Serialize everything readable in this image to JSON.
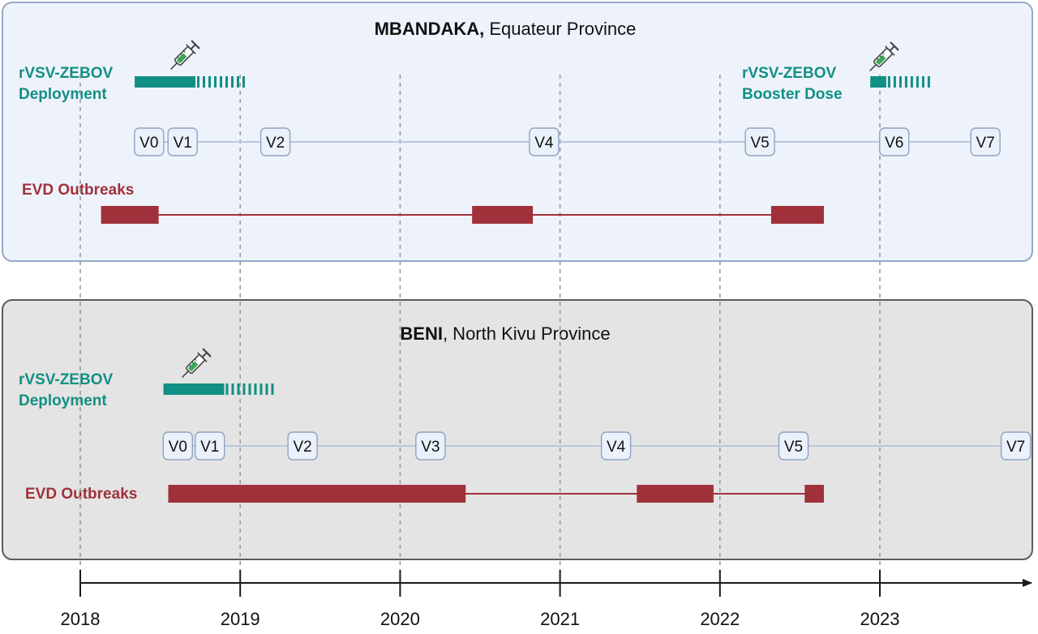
{
  "colors": {
    "vaccine": "#128f84",
    "outbreak": "#a0313b",
    "visit_line": "#b9c7dc",
    "visit_border": "#8fa3c0",
    "visit_fill": "#eaf1fb",
    "panel1_fill": "#eef3fb",
    "panel1_border": "#95a9c8",
    "panel2_fill": "#e4e4e4",
    "panel2_border": "#5c5c5c",
    "grid": "#9a9a9a",
    "axis": "#1a1a1a"
  },
  "axis": {
    "years": [
      "2018",
      "2019",
      "2020",
      "2021",
      "2022",
      "2023"
    ],
    "range": [
      2018,
      2024.6
    ]
  },
  "panels": [
    {
      "id": "mbandaka",
      "title_bold": "MBANDAKA,",
      "title_rest": " Equateur Province",
      "vaccine_labels": [
        {
          "id": "deployment",
          "lines": [
            "rVSV-ZEBOV",
            "Deployment"
          ],
          "start": 2018.34,
          "solid_end": 2018.72,
          "dash_end": 2019.04
        },
        {
          "id": "booster",
          "lines": [
            "rVSV-ZEBOV",
            "Booster Dose"
          ],
          "start": 2022.94,
          "solid_end": 2023.04,
          "dash_end": 2023.33
        }
      ],
      "visits": [
        {
          "label": "V0",
          "t": 2018.43
        },
        {
          "label": "V1",
          "t": 2018.64
        },
        {
          "label": "V2",
          "t": 2019.22
        },
        {
          "label": "V4",
          "t": 2020.9
        },
        {
          "label": "V5",
          "t": 2022.25
        },
        {
          "label": "V6",
          "t": 2023.09
        },
        {
          "label": "V7",
          "t": 2023.66
        }
      ],
      "outbreak_label": "EVD Outbreaks",
      "outbreaks": [
        {
          "start": 2018.13,
          "end": 2018.49
        },
        {
          "start": 2020.45,
          "end": 2020.83
        },
        {
          "start": 2022.32,
          "end": 2022.65
        }
      ]
    },
    {
      "id": "beni",
      "title_bold": "BENI",
      "title_rest": ", North Kivu Province",
      "vaccine_labels": [
        {
          "id": "deployment",
          "lines": [
            "rVSV-ZEBOV",
            "Deployment"
          ],
          "start": 2018.52,
          "solid_end": 2018.9,
          "dash_end": 2019.22
        }
      ],
      "visits": [
        {
          "label": "V0",
          "t": 2018.61
        },
        {
          "label": "V1",
          "t": 2018.81
        },
        {
          "label": "V2",
          "t": 2019.39
        },
        {
          "label": "V3",
          "t": 2020.19
        },
        {
          "label": "V4",
          "t": 2021.35
        },
        {
          "label": "V5",
          "t": 2022.46
        },
        {
          "label": "V7",
          "t": 2023.85
        }
      ],
      "outbreak_label": "EVD Outbreaks",
      "outbreaks": [
        {
          "start": 2018.55,
          "end": 2020.41
        },
        {
          "start": 2021.48,
          "end": 2021.96
        },
        {
          "start": 2022.53,
          "end": 2022.65
        }
      ]
    }
  ]
}
